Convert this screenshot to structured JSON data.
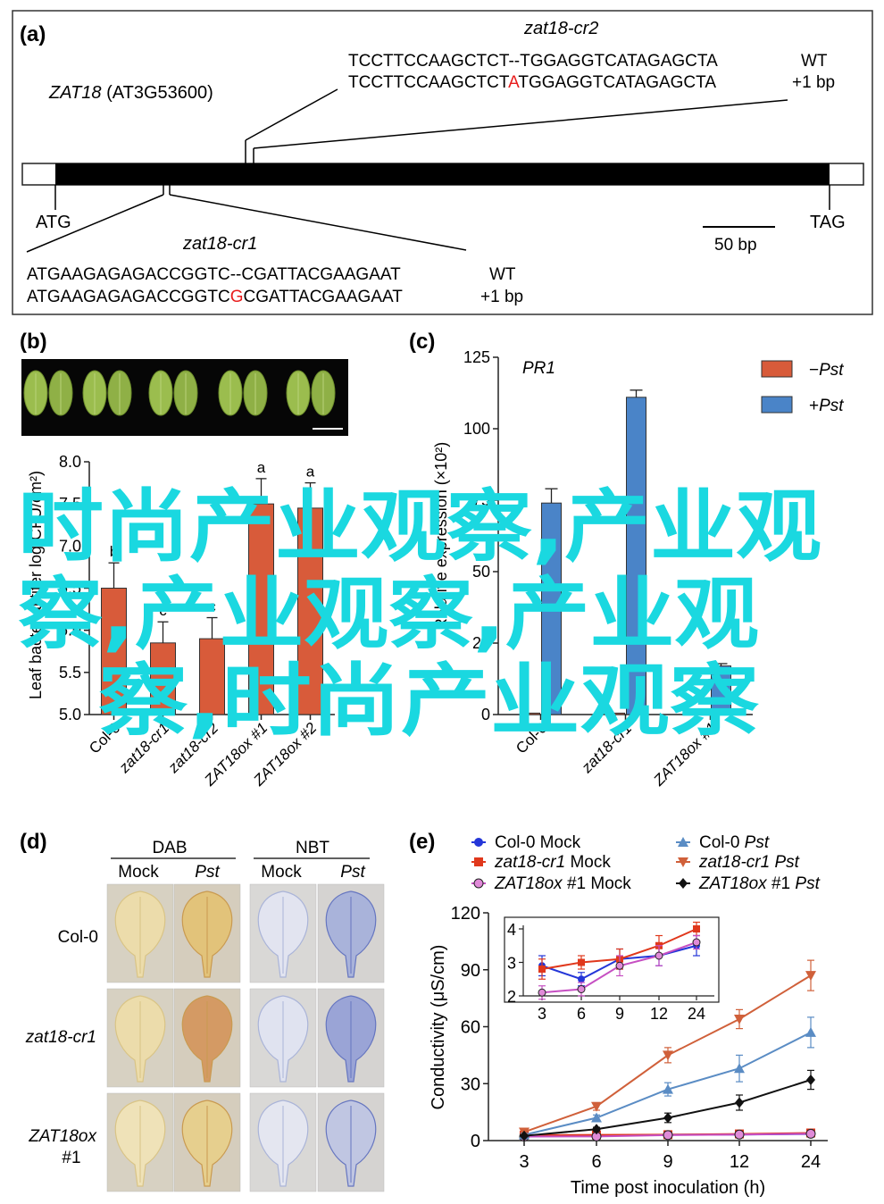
{
  "panels": {
    "a": {
      "label": "(a)",
      "gene": "ZAT18",
      "gene_locus": "(AT3G53600)",
      "start_codon": "ATG",
      "stop_codon": "TAG",
      "scale_bar": "50 bp",
      "cr2": {
        "name": "zat18-cr2",
        "wt_prefix": "TCCTTCCAAGCTCT",
        "wt_gap": "--",
        "wt_suffix": "TGGAGGTCATAGAGCTA",
        "mut_prefix": "TCCTTCCAAGCTCT",
        "mut_insert": "A",
        "mut_suffix": "TGGAGGTCATAGAGCTA",
        "wt_label": "WT",
        "mut_label": "+1 bp"
      },
      "cr1": {
        "name": "zat18-cr1",
        "wt_prefix": "ATGAAGAGAGACCGGTC",
        "wt_gap": "--",
        "wt_suffix": "CGATTACGAAGAAT",
        "mut_prefix": "ATGAAGAGAGACCGGTC",
        "mut_insert": "G",
        "mut_suffix": "CGATTACGAAGAAT",
        "wt_label": "WT",
        "mut_label": "+1 bp"
      }
    },
    "b": {
      "label": "(b)",
      "ylabel": "Leaf bacterial titer log(CFU/cm²)",
      "watermark": "时尚产业观察,产业观察,产业观察,产业观察,时尚产业观察"
    },
    "c": {
      "label": "(c)",
      "gene": "PR1",
      "ylabel": "Relative expression (×10²)"
    },
    "d": {
      "label": "(d)",
      "stain1": "DAB",
      "stain2": "NBT",
      "mock": "Mock",
      "pst": "Pst",
      "rows": [
        "Col-0",
        "zat18-cr1",
        "ZAT18ox",
        "#1"
      ]
    },
    "e": {
      "label": "(e)"
    }
  },
  "chart_data": [
    {
      "id": "b",
      "type": "bar",
      "categories": [
        "Col-0",
        "zat18-cr1",
        "zat18-cr2",
        "ZAT18ox #1",
        "ZAT18ox #2"
      ],
      "values": [
        6.5,
        5.85,
        5.9,
        7.5,
        7.45
      ],
      "errors": [
        0.3,
        0.25,
        0.25,
        0.3,
        0.3
      ],
      "letters": [
        "b",
        "c",
        "c",
        "a",
        "a"
      ],
      "ylim": [
        5.0,
        8.0
      ],
      "yticks": [
        "5.0",
        "5.5",
        "6.0",
        "6.5",
        "7.0",
        "7.5",
        "8.0"
      ],
      "bar_color": "#d85b3a"
    },
    {
      "id": "c",
      "type": "bar",
      "categories": [
        "Col-0",
        "zat18-cr1",
        "ZAT18ox #1"
      ],
      "series": [
        {
          "name": "−Pst",
          "values": [
            0.5,
            0.5,
            0.5
          ],
          "errors": [
            0,
            0,
            0
          ],
          "color": "#d85b3a"
        },
        {
          "name": "+Pst",
          "values": [
            74,
            111,
            17
          ],
          "errors": [
            5,
            2.5,
            0.8
          ],
          "color": "#4a84c8"
        }
      ],
      "ylim": [
        0,
        125
      ],
      "yticks": [
        "0",
        "25",
        "50",
        "75",
        "100",
        "125"
      ],
      "legend": "top-right"
    },
    {
      "id": "e",
      "type": "line",
      "xlabel": "Time post inoculation (h)",
      "ylabel": "Conductivity (μS/cm)",
      "x": [
        "3",
        "6",
        "9",
        "12",
        "24"
      ],
      "ylim": [
        0,
        120
      ],
      "yticks": [
        "0",
        "30",
        "60",
        "90",
        "120"
      ],
      "series": [
        {
          "name": "Col-0 Mock",
          "values": [
            2.9,
            2.5,
            3.1,
            3.2,
            3.5
          ],
          "errors": [
            0.3,
            0.2,
            0.3,
            0.3,
            0.3
          ],
          "color": "#2436d8",
          "marker": "circle"
        },
        {
          "name": "zat18-cr1 Mock",
          "values": [
            2.8,
            3.0,
            3.1,
            3.5,
            4.0
          ],
          "errors": [
            0.3,
            0.2,
            0.3,
            0.3,
            0.2
          ],
          "color": "#e0381c",
          "marker": "square"
        },
        {
          "name": "ZAT18ox #1 Mock",
          "values": [
            2.1,
            2.2,
            2.9,
            3.2,
            3.6
          ],
          "errors": [
            0.2,
            0.2,
            0.3,
            0.3,
            0.2
          ],
          "color": "#c64fc2",
          "marker": "circle-open"
        },
        {
          "name": "Col-0 Pst",
          "values": [
            3,
            12,
            27,
            38,
            57
          ],
          "errors": [
            1,
            1.5,
            3.5,
            7,
            8
          ],
          "color": "#5a8cc4",
          "marker": "triangle"
        },
        {
          "name": "zat18-cr1 Pst",
          "values": [
            4.5,
            18,
            45,
            64,
            87
          ],
          "errors": [
            1,
            2,
            4,
            5,
            8
          ],
          "color": "#d0603a",
          "marker": "triangle-down"
        },
        {
          "name": "ZAT18ox #1 Pst",
          "values": [
            2.5,
            6,
            12,
            20,
            32
          ],
          "errors": [
            0.5,
            1,
            2.5,
            4,
            5
          ],
          "color": "#111111",
          "marker": "diamond"
        }
      ],
      "legend_labels": [
        {
          "text": "Col-0 Mock",
          "prefix": "Col-0",
          "suffix": "Mock",
          "italic": "none"
        },
        {
          "text": "zat18-cr1 Mock",
          "prefix": "zat18-cr1",
          "suffix": "Mock",
          "italic": "prefix"
        },
        {
          "text": "ZAT18ox #1 Mock",
          "prefix": "ZAT18ox",
          "suffix": "#1 Mock",
          "italic": "prefix"
        },
        {
          "text": "Col-0 Pst",
          "prefix": "Col-0",
          "suffix": "Pst",
          "italic": "suffix"
        },
        {
          "text": "zat18-cr1 Pst",
          "prefix": "zat18-cr1",
          "suffix": "Pst",
          "italic": "both"
        },
        {
          "text": "ZAT18ox #1 Pst",
          "prefix": "ZAT18ox",
          "suffix": "#1 Pst",
          "italic": "first-last"
        }
      ],
      "inset": {
        "x": [
          "3",
          "6",
          "9",
          "12",
          "24"
        ],
        "ylim": [
          2,
          4
        ],
        "yticks": [
          "2",
          "3",
          "4"
        ]
      }
    }
  ]
}
